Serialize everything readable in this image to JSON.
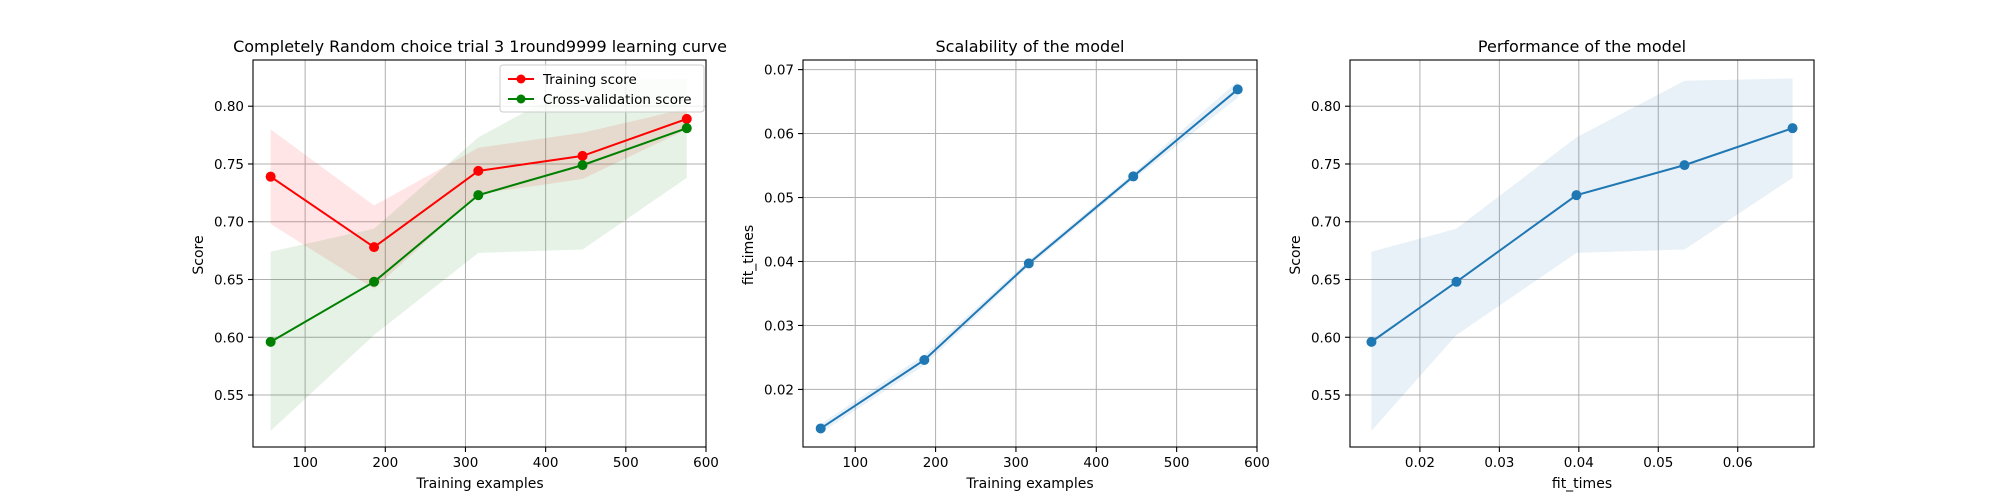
{
  "chart_data": [
    {
      "type": "line",
      "title": "Completely Random choice trial 3 1round9999 learning curve",
      "xlabel": "Training examples",
      "ylabel": "Score",
      "xlim": [
        35,
        600
      ],
      "ylim": [
        0.505,
        0.84
      ],
      "xticks": [
        100,
        200,
        300,
        400,
        500,
        600
      ],
      "yticks": [
        0.55,
        0.6,
        0.65,
        0.7,
        0.75,
        0.8
      ],
      "grid": true,
      "legend_position": "upper right",
      "x": [
        57,
        186,
        316,
        446,
        576
      ],
      "series": [
        {
          "name": "Training score",
          "color": "#ff0000",
          "fill_color": "#ff0000",
          "values": [
            0.739,
            0.678,
            0.744,
            0.757,
            0.789
          ],
          "lower": [
            0.698,
            0.642,
            0.724,
            0.737,
            0.78
          ],
          "upper": [
            0.78,
            0.714,
            0.764,
            0.777,
            0.798
          ]
        },
        {
          "name": "Cross-validation score",
          "color": "#008000",
          "fill_color": "#008000",
          "values": [
            0.596,
            0.648,
            0.723,
            0.749,
            0.781
          ],
          "lower": [
            0.519,
            0.602,
            0.673,
            0.676,
            0.738
          ],
          "upper": [
            0.674,
            0.694,
            0.773,
            0.822,
            0.824
          ]
        }
      ]
    },
    {
      "type": "line",
      "title": "Scalability of the model",
      "xlabel": "Training examples",
      "ylabel": "fit_times",
      "xlim": [
        35,
        600
      ],
      "ylim": [
        0.011,
        0.0715
      ],
      "xticks": [
        100,
        200,
        300,
        400,
        500,
        600
      ],
      "yticks": [
        0.02,
        0.03,
        0.04,
        0.05,
        0.06,
        0.07
      ],
      "grid": true,
      "x": [
        57,
        186,
        316,
        446,
        576
      ],
      "series": [
        {
          "color": "#1f77b4",
          "fill_color": "#1f77b4",
          "values": [
            0.0139,
            0.0246,
            0.0397,
            0.0533,
            0.0669
          ],
          "lower": [
            0.0132,
            0.0238,
            0.0392,
            0.0528,
            0.0656
          ],
          "upper": [
            0.0146,
            0.0254,
            0.0402,
            0.0538,
            0.0682
          ]
        }
      ]
    },
    {
      "type": "line",
      "title": "Performance of the model",
      "xlabel": "fit_times",
      "ylabel": "Score",
      "xlim": [
        0.0112,
        0.0696
      ],
      "ylim": [
        0.505,
        0.84
      ],
      "xticks": [
        0.02,
        0.03,
        0.04,
        0.05,
        0.06
      ],
      "yticks": [
        0.55,
        0.6,
        0.65,
        0.7,
        0.75,
        0.8
      ],
      "grid": true,
      "x": [
        0.0139,
        0.0246,
        0.0397,
        0.0533,
        0.0669
      ],
      "series": [
        {
          "color": "#1f77b4",
          "fill_color": "#1f77b4",
          "values": [
            0.596,
            0.648,
            0.723,
            0.749,
            0.781
          ],
          "lower": [
            0.519,
            0.602,
            0.673,
            0.676,
            0.738
          ],
          "upper": [
            0.674,
            0.694,
            0.773,
            0.822,
            0.824
          ]
        }
      ]
    }
  ]
}
